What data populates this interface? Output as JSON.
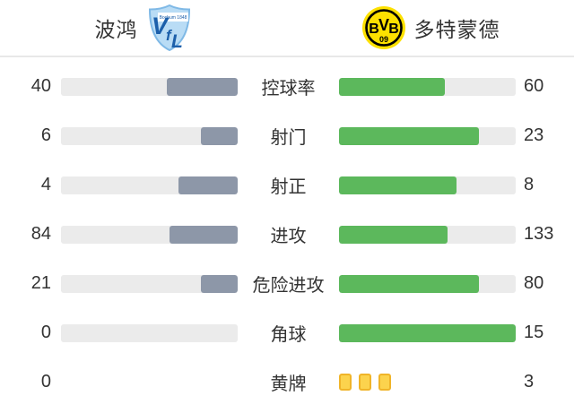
{
  "header": {
    "home_team": "波鸿",
    "away_team": "多特蒙德",
    "badges": {
      "bochum": {
        "letters": [
          "V",
          "f",
          "L"
        ],
        "band": "Bochum 1848"
      },
      "bvb": {
        "letters": [
          "B",
          "V",
          "B"
        ],
        "year": "09"
      }
    }
  },
  "colors": {
    "home_bar": "#8d97a8",
    "away_bar": "#5cb85c",
    "track": "#ebebeb",
    "card_fill": "#fcd34d",
    "card_border": "#f0b429",
    "text": "#333333",
    "divider": "#e8e8e8",
    "bochum_blue": "#b9dcf5",
    "bochum_dark_blue": "#1c5faa",
    "bvb_yellow": "#fde100"
  },
  "stats": [
    {
      "label": "控球率",
      "home": 40,
      "away": 60
    },
    {
      "label": "射门",
      "home": 6,
      "away": 23
    },
    {
      "label": "射正",
      "home": 4,
      "away": 8
    },
    {
      "label": "进攻",
      "home": 84,
      "away": 133
    },
    {
      "label": "危险进攻",
      "home": 21,
      "away": 80
    },
    {
      "label": "角球",
      "home": 0,
      "away": 15
    },
    {
      "label": "黄牌",
      "home": 0,
      "away": 3,
      "display": "cards"
    }
  ]
}
